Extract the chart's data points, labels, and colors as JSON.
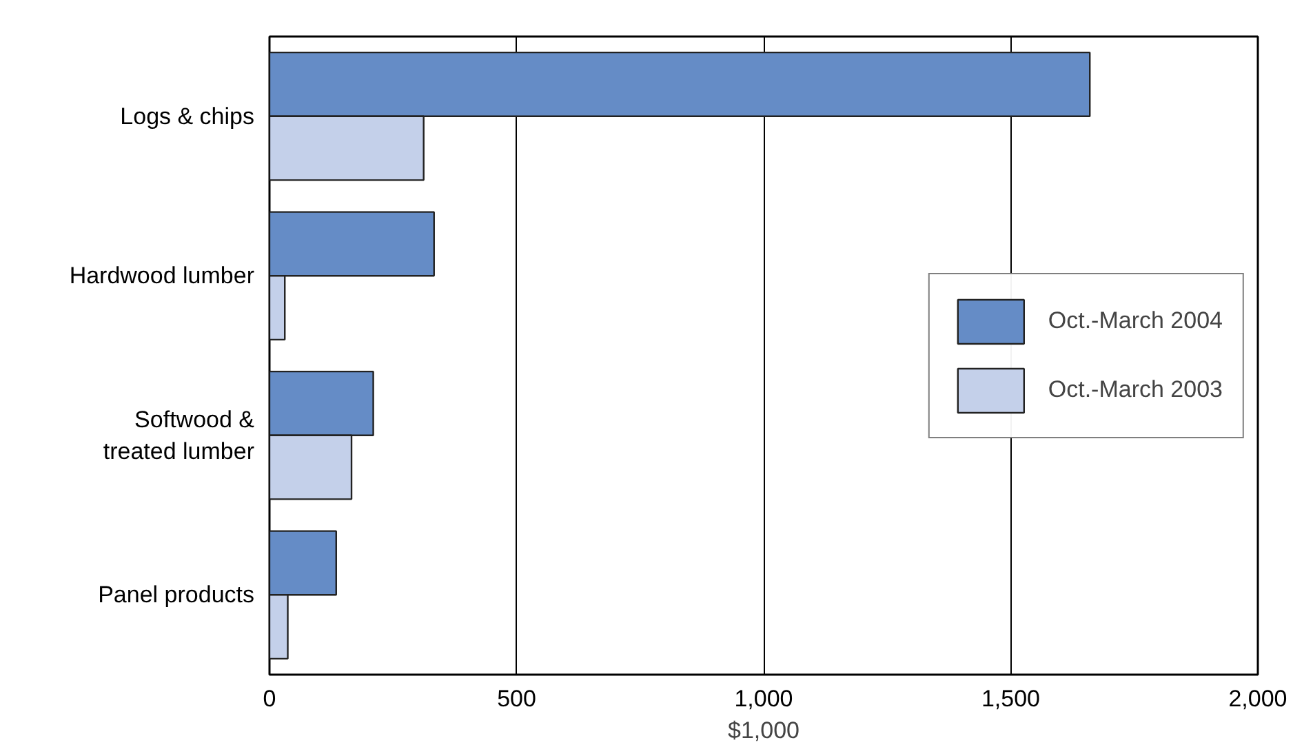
{
  "chart_data": {
    "type": "bar",
    "orientation": "horizontal",
    "xlabel": "$1,000",
    "categories": [
      "Logs & chips",
      "Hardwood lumber",
      "Softwood &\ntreated lumber",
      "Panel products"
    ],
    "series": [
      {
        "name": "Oct.-March 2004",
        "color": "#658cc6",
        "values": [
          1660,
          333,
          210,
          135
        ]
      },
      {
        "name": "Oct.-March 2003",
        "color": "#c4d0ea",
        "values": [
          312,
          31,
          166,
          37
        ]
      }
    ],
    "xlim": [
      0,
      2000
    ],
    "xticks": [
      0,
      {
        "value": 500,
        "label": "500"
      },
      {
        "value": 1000,
        "label": "1,000"
      },
      {
        "value": 1500,
        "label": "1,500"
      },
      {
        "value": 2000,
        "label": "2,000"
      }
    ],
    "grid": "x",
    "legend": "right"
  }
}
